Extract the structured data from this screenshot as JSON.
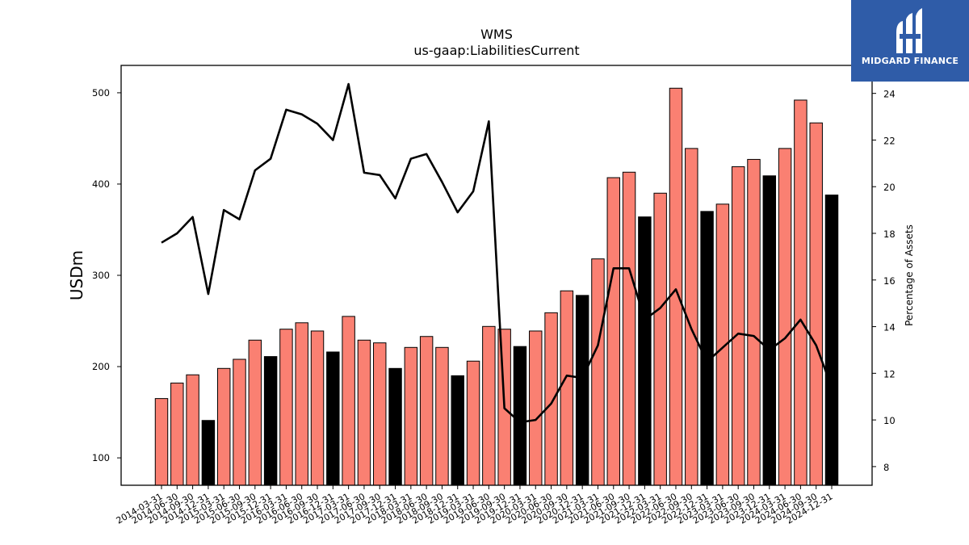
{
  "brand": {
    "name": "MIDGARD FINANCE",
    "bg_color": "#2f5ca8",
    "icon": "midgard-logo-icon"
  },
  "chart_data": {
    "type": "bar",
    "title": "WMS",
    "subtitle": "us-gaap:LiabilitiesCurrent",
    "ylabel": "USDm",
    "y2label": "Percentage of Assets",
    "ylim": [
      70,
      530
    ],
    "y2lim": [
      7.2,
      25.2
    ],
    "yticks": [
      100,
      200,
      300,
      400,
      500
    ],
    "y2ticks": [
      8,
      10,
      12,
      14,
      16,
      18,
      20,
      22,
      24
    ],
    "colors": {
      "bar": "#fa8072",
      "bar_q4": "#000000",
      "line": "#000000"
    },
    "categories": [
      "2014-03-31",
      "2014-06-30",
      "2014-09-30",
      "2014-12-31",
      "2015-03-31",
      "2015-06-30",
      "2015-09-30",
      "2015-12-31",
      "2016-03-31",
      "2016-06-30",
      "2016-09-30",
      "2016-12-31",
      "2017-03-31",
      "2017-06-30",
      "2017-09-30",
      "2017-12-31",
      "2018-03-31",
      "2018-06-30",
      "2018-09-30",
      "2018-12-31",
      "2019-03-31",
      "2019-06-30",
      "2019-09-30",
      "2019-12-31",
      "2020-03-31",
      "2020-06-30",
      "2020-09-30",
      "2020-12-31",
      "2021-03-31",
      "2021-06-30",
      "2021-09-30",
      "2021-12-31",
      "2022-03-31",
      "2022-06-30",
      "2022-09-30",
      "2022-12-31",
      "2023-03-31",
      "2023-06-30",
      "2023-09-30",
      "2023-12-31",
      "2024-03-31",
      "2024-06-30",
      "2024-09-30",
      "2024-12-31"
    ],
    "series": [
      {
        "type": "bar",
        "axis": "left",
        "values": [
          165,
          182,
          191,
          141,
          198,
          208,
          229,
          211,
          241,
          248,
          239,
          216,
          255,
          229,
          226,
          198,
          221,
          233,
          221,
          190,
          206,
          244,
          241,
          222,
          239,
          259,
          283,
          278,
          318,
          407,
          413,
          364,
          390,
          505,
          439,
          370,
          378,
          419,
          427,
          409,
          439,
          492,
          467,
          388
        ],
        "dark": [
          false,
          false,
          false,
          true,
          false,
          false,
          false,
          true,
          false,
          false,
          false,
          true,
          false,
          false,
          false,
          true,
          false,
          false,
          false,
          true,
          false,
          false,
          false,
          true,
          false,
          false,
          false,
          true,
          false,
          false,
          false,
          true,
          false,
          false,
          false,
          true,
          false,
          false,
          false,
          true,
          false,
          false,
          false,
          true
        ]
      },
      {
        "type": "line",
        "axis": "right",
        "values": [
          17.6,
          18.0,
          18.7,
          15.4,
          19.0,
          18.6,
          20.7,
          21.2,
          23.3,
          23.1,
          22.7,
          22.0,
          24.4,
          20.6,
          20.5,
          19.5,
          21.2,
          21.4,
          20.2,
          18.9,
          19.8,
          22.8,
          10.5,
          9.9,
          10.0,
          10.7,
          11.9,
          11.8,
          13.2,
          16.5,
          16.5,
          14.3,
          14.8,
          15.6,
          13.9,
          12.5,
          13.1,
          13.7,
          13.6,
          13.0,
          13.5,
          14.3,
          13.2,
          11.4
        ]
      }
    ]
  }
}
